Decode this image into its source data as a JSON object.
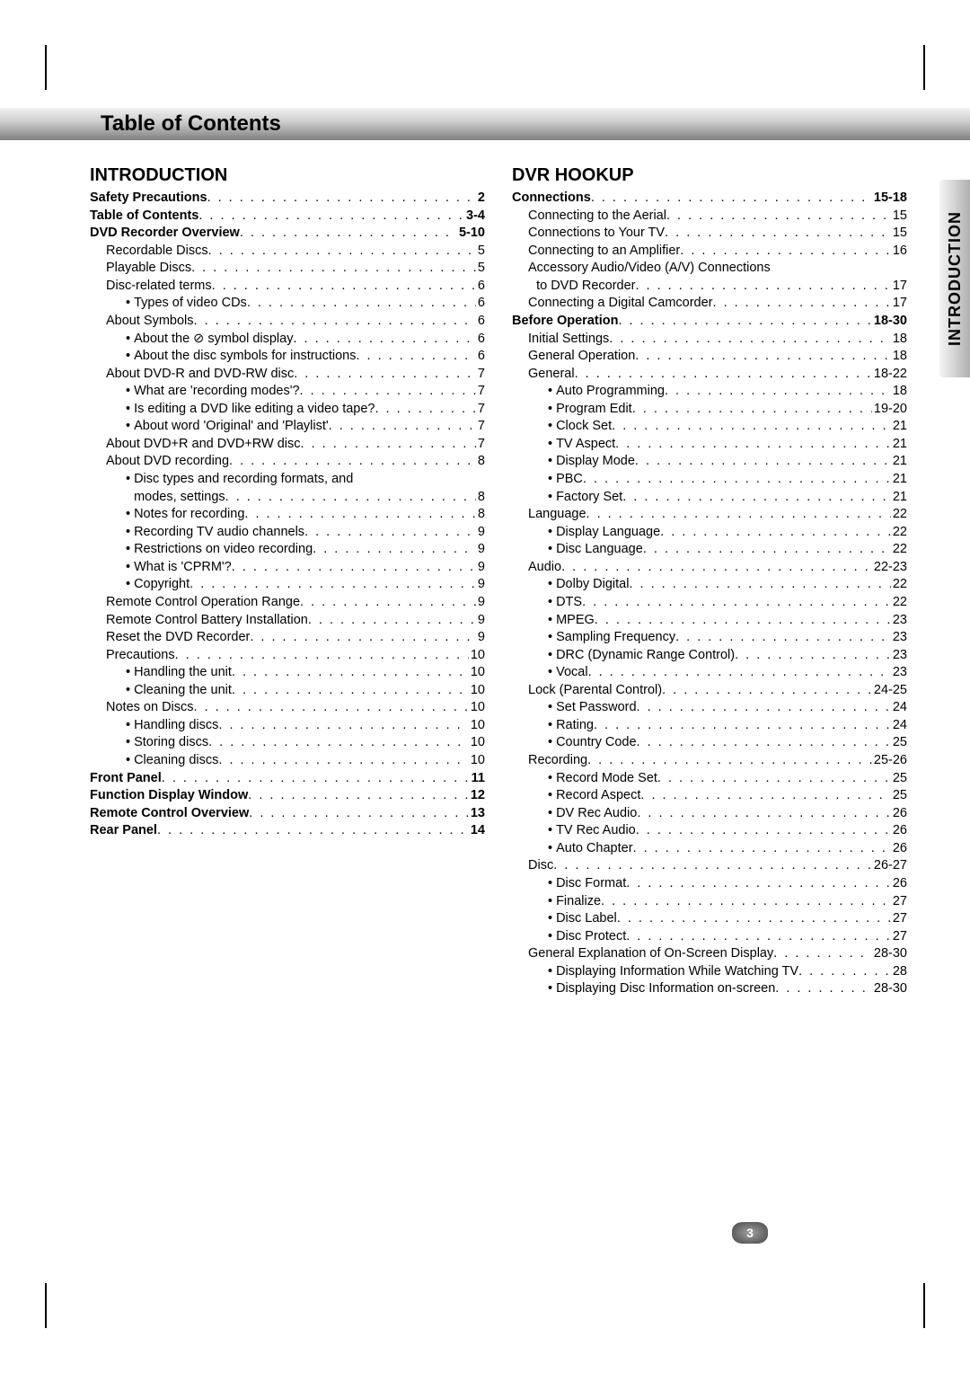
{
  "header": "Table of Contents",
  "sideTab": "INTRODUCTION",
  "pageNumber": "3",
  "leftTitle": "INTRODUCTION",
  "rightTitle": "DVR HOOKUP",
  "left": [
    {
      "label": "Safety Precautions",
      "page": "2",
      "bold": true,
      "indent": 0
    },
    {
      "label": "Table of Contents",
      "page": "3-4",
      "bold": true,
      "indent": 0
    },
    {
      "label": "DVD Recorder Overview",
      "page": "5-10",
      "bold": true,
      "indent": 0
    },
    {
      "label": "Recordable Discs",
      "page": "5",
      "indent": 1
    },
    {
      "label": "Playable Discs",
      "page": "5",
      "indent": 1
    },
    {
      "label": "Disc-related terms",
      "page": "6",
      "indent": 1
    },
    {
      "label": "Types of video CDs",
      "page": "6",
      "indent": 2,
      "bullet": true
    },
    {
      "label": "About Symbols",
      "page": "6",
      "indent": 1
    },
    {
      "label": "About the ⊘ symbol display",
      "page": "6",
      "indent": 2,
      "bullet": true
    },
    {
      "label": "About the disc symbols for instructions",
      "page": "6",
      "indent": 2,
      "bullet": true
    },
    {
      "label": "About DVD-R and DVD-RW disc",
      "page": "7",
      "indent": 1
    },
    {
      "label": "What are 'recording modes'?",
      "page": "7",
      "indent": 2,
      "bullet": true
    },
    {
      "label": "Is editing a DVD like editing a video tape?",
      "page": "7",
      "indent": 2,
      "bullet": true
    },
    {
      "label": "About word 'Original' and 'Playlist'",
      "page": "7",
      "indent": 2,
      "bullet": true
    },
    {
      "label": "About DVD+R and DVD+RW disc",
      "page": "7",
      "indent": 1
    },
    {
      "label": "About DVD recording",
      "page": "8",
      "indent": 1
    },
    {
      "label": "Disc types and recording formats, modes, and settings",
      "page": "8",
      "indent": 2,
      "bullet": true,
      "wrap": true
    },
    {
      "label": "Notes for recording",
      "page": "8",
      "indent": 2,
      "bullet": true
    },
    {
      "label": "Recording TV audio channels",
      "page": "9",
      "indent": 2,
      "bullet": true
    },
    {
      "label": "Restrictions on video recording",
      "page": "9",
      "indent": 2,
      "bullet": true
    },
    {
      "label": "What is 'CPRM'?",
      "page": "9",
      "indent": 2,
      "bullet": true
    },
    {
      "label": "Copyright",
      "page": "9",
      "indent": 2,
      "bullet": true
    },
    {
      "label": "Remote Control Operation Range",
      "page": "9",
      "indent": 1
    },
    {
      "label": "Remote Control Battery Installation",
      "page": "9",
      "indent": 1
    },
    {
      "label": "Reset the DVD Recorder",
      "page": "9",
      "indent": 1
    },
    {
      "label": "Precautions",
      "page": "10",
      "indent": 1
    },
    {
      "label": "Handling the unit",
      "page": "10",
      "indent": 2,
      "bullet": true
    },
    {
      "label": "Cleaning the unit",
      "page": "10",
      "indent": 2,
      "bullet": true
    },
    {
      "label": "Notes on Discs",
      "page": "10",
      "indent": 1
    },
    {
      "label": "Handling discs",
      "page": "10",
      "indent": 2,
      "bullet": true
    },
    {
      "label": "Storing discs",
      "page": "10",
      "indent": 2,
      "bullet": true
    },
    {
      "label": "Cleaning discs",
      "page": "10",
      "indent": 2,
      "bullet": true
    },
    {
      "label": "Front Panel",
      "page": "11",
      "bold": true,
      "indent": 0
    },
    {
      "label": "Function Display Window",
      "page": "12",
      "bold": true,
      "indent": 0
    },
    {
      "label": "Remote Control Overview",
      "page": "13",
      "bold": true,
      "indent": 0
    },
    {
      "label": "Rear Panel",
      "page": "14",
      "bold": true,
      "indent": 0
    }
  ],
  "right": [
    {
      "label": "Connections",
      "page": "15-18",
      "bold": true,
      "indent": 0
    },
    {
      "label": "Connecting to the Aerial",
      "page": "15",
      "indent": 1
    },
    {
      "label": "Connections to Your TV",
      "page": "15",
      "indent": 1
    },
    {
      "label": "Connecting to an Amplifier",
      "page": "16",
      "indent": 1
    },
    {
      "label": "Accessory Audio/Video (A/V) Connections to DVD Recorder",
      "page": "17",
      "indent": 1,
      "wrap": true
    },
    {
      "label": "Connecting a Digital Camcorder",
      "page": "17",
      "indent": 1
    },
    {
      "label": "Before Operation",
      "page": "18-30",
      "bold": true,
      "indent": 0
    },
    {
      "label": "Initial Settings",
      "page": "18",
      "indent": 1
    },
    {
      "label": "General Operation",
      "page": "18",
      "indent": 1
    },
    {
      "label": "General",
      "page": "18-22",
      "indent": 1
    },
    {
      "label": "Auto Programming",
      "page": "18",
      "indent": 2,
      "bullet": true
    },
    {
      "label": "Program Edit",
      "page": "19-20",
      "indent": 2,
      "bullet": true
    },
    {
      "label": "Clock Set",
      "page": "21",
      "indent": 2,
      "bullet": true
    },
    {
      "label": "TV Aspect",
      "page": "21",
      "indent": 2,
      "bullet": true
    },
    {
      "label": "Display Mode",
      "page": "21",
      "indent": 2,
      "bullet": true
    },
    {
      "label": "PBC",
      "page": "21",
      "indent": 2,
      "bullet": true
    },
    {
      "label": "Factory Set",
      "page": "21",
      "indent": 2,
      "bullet": true
    },
    {
      "label": "Language",
      "page": "22",
      "indent": 1
    },
    {
      "label": "Display Language",
      "page": "22",
      "indent": 2,
      "bullet": true
    },
    {
      "label": "Disc Language",
      "page": "22",
      "indent": 2,
      "bullet": true
    },
    {
      "label": "Audio",
      "page": "22-23",
      "indent": 1
    },
    {
      "label": "Dolby Digital",
      "page": "22",
      "indent": 2,
      "bullet": true
    },
    {
      "label": "DTS",
      "page": "22",
      "indent": 2,
      "bullet": true
    },
    {
      "label": "MPEG",
      "page": "23",
      "indent": 2,
      "bullet": true
    },
    {
      "label": "Sampling Frequency",
      "page": "23",
      "indent": 2,
      "bullet": true
    },
    {
      "label": "DRC (Dynamic Range Control)",
      "page": "23",
      "indent": 2,
      "bullet": true
    },
    {
      "label": "Vocal",
      "page": "23",
      "indent": 2,
      "bullet": true
    },
    {
      "label": "Lock (Parental Control)",
      "page": "24-25",
      "indent": 1
    },
    {
      "label": "Set Password",
      "page": "24",
      "indent": 2,
      "bullet": true
    },
    {
      "label": "Rating",
      "page": "24",
      "indent": 2,
      "bullet": true
    },
    {
      "label": "Country Code",
      "page": "25",
      "indent": 2,
      "bullet": true
    },
    {
      "label": "Recording",
      "page": "25-26",
      "indent": 1
    },
    {
      "label": "Record Mode Set",
      "page": "25",
      "indent": 2,
      "bullet": true
    },
    {
      "label": "Record Aspect",
      "page": "25",
      "indent": 2,
      "bullet": true
    },
    {
      "label": "DV Rec Audio",
      "page": "26",
      "indent": 2,
      "bullet": true
    },
    {
      "label": "TV Rec Audio",
      "page": "26",
      "indent": 2,
      "bullet": true
    },
    {
      "label": "Auto Chapter",
      "page": "26",
      "indent": 2,
      "bullet": true
    },
    {
      "label": "Disc",
      "page": "26-27",
      "indent": 1
    },
    {
      "label": "Disc Format",
      "page": "26",
      "indent": 2,
      "bullet": true
    },
    {
      "label": "Finalize",
      "page": "27",
      "indent": 2,
      "bullet": true
    },
    {
      "label": "Disc Label",
      "page": "27",
      "indent": 2,
      "bullet": true
    },
    {
      "label": "Disc Protect",
      "page": "27",
      "indent": 2,
      "bullet": true
    },
    {
      "label": "General Explanation of On-Screen Display",
      "page": "28-30",
      "indent": 1
    },
    {
      "label": "Displaying Information While Watching TV",
      "page": "28",
      "indent": 2,
      "bullet": true
    },
    {
      "label": "Displaying Disc Information on-screen",
      "page": "28-30",
      "indent": 2,
      "bullet": true
    }
  ]
}
